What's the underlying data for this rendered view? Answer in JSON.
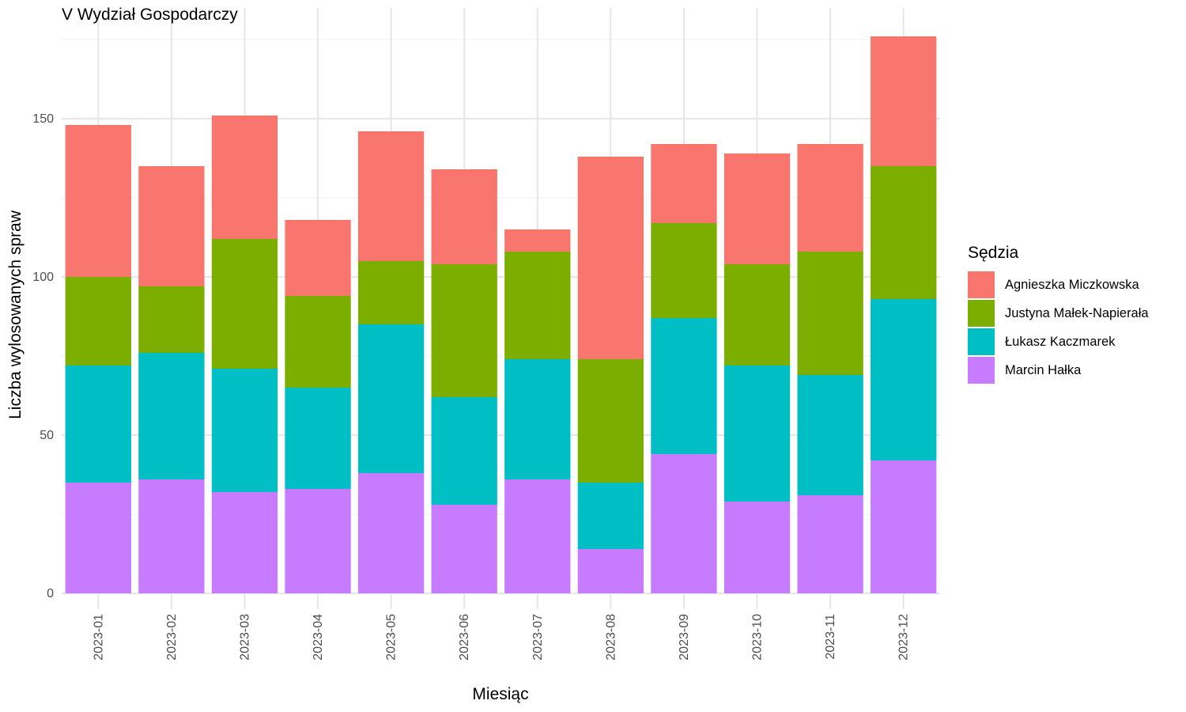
{
  "chart_data": {
    "type": "bar",
    "stacked": true,
    "title": "V Wydział Gospodarczy",
    "xlabel": "Miesiąc",
    "ylabel": "Liczba wylosowanych spraw",
    "ylim": [
      0,
      180
    ],
    "yticks": [
      0,
      50,
      100,
      150
    ],
    "grid": true,
    "legend_title": "Sędzia",
    "legend_position": "right",
    "categories": [
      "2023-01",
      "2023-02",
      "2023-03",
      "2023-04",
      "2023-05",
      "2023-06",
      "2023-07",
      "2023-08",
      "2023-09",
      "2023-10",
      "2023-11",
      "2023-12"
    ],
    "series": [
      {
        "name": "Marcin Hałka",
        "color": "#C77CFF",
        "values": [
          35,
          36,
          32,
          33,
          38,
          28,
          36,
          14,
          44,
          29,
          31,
          42
        ]
      },
      {
        "name": "Łukasz Kaczmarek",
        "color": "#00BFC4",
        "values": [
          37,
          40,
          39,
          32,
          47,
          34,
          38,
          21,
          43,
          43,
          38,
          51
        ]
      },
      {
        "name": "Justyna Małek-Napierała",
        "color": "#7CAE00",
        "values": [
          28,
          21,
          41,
          29,
          20,
          42,
          34,
          39,
          30,
          32,
          39,
          42
        ]
      },
      {
        "name": "Agnieszka Miczkowska",
        "color": "#F8766D",
        "values": [
          48,
          38,
          39,
          24,
          41,
          30,
          7,
          64,
          25,
          35,
          34,
          41
        ]
      }
    ]
  }
}
